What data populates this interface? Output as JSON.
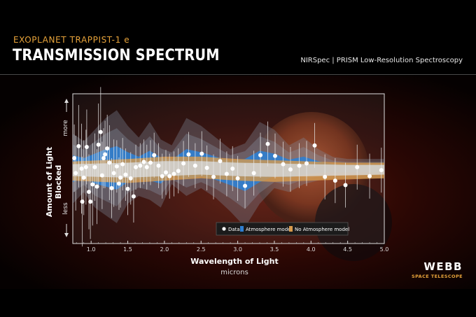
{
  "header": {
    "subtitle": "EXOPLANET TRAPPIST-1 e",
    "title": "TRANSMISSION SPECTRUM",
    "instrument": "NIRSpec | PRISM Low-Resolution Spectroscopy"
  },
  "branding": {
    "logo": "WEBB",
    "logo_sub": "SPACE TELESCOPE"
  },
  "colors": {
    "accent": "#e7a33a",
    "atmosphere": "#2f7fd1",
    "no_atmosphere": "#d79a4c",
    "data": "#ffffff"
  },
  "chart_data": {
    "type": "scatter",
    "xlabel": "Wavelength of Light",
    "xunit": "microns",
    "ylabel": "Amount of Light Blocked",
    "ylabel_more": "more",
    "ylabel_less": "less",
    "xlim": [
      0.75,
      5.0
    ],
    "ylim": [
      -1.0,
      1.0
    ],
    "xticks": [
      1.0,
      1.5,
      2.0,
      2.5,
      3.0,
      3.5,
      4.0,
      4.5,
      5.0
    ],
    "xtick_labels": [
      "1.0",
      "1.5",
      "2.0",
      "2.5",
      "3.0",
      "3.5",
      "4.0",
      "4.5",
      "5.0"
    ],
    "legend": {
      "position": "bottom-right",
      "entries": [
        "Data",
        "Atmosphere model",
        "No Atmosphere model"
      ]
    },
    "series": [
      {
        "name": "Data",
        "points": [
          {
            "x": 0.77,
            "y": 0.14,
            "err": 0.45
          },
          {
            "x": 0.79,
            "y": -0.06,
            "err": 0.5
          },
          {
            "x": 0.83,
            "y": 0.3,
            "err": 0.55
          },
          {
            "x": 0.87,
            "y": 0.0,
            "err": 0.6
          },
          {
            "x": 0.88,
            "y": -0.44,
            "err": 0.6
          },
          {
            "x": 0.9,
            "y": -0.12,
            "err": 0.5
          },
          {
            "x": 0.93,
            "y": 0.02,
            "err": 0.5
          },
          {
            "x": 0.94,
            "y": 0.29,
            "err": 0.5
          },
          {
            "x": 0.97,
            "y": -0.31,
            "err": 0.5
          },
          {
            "x": 0.99,
            "y": -0.44,
            "err": 0.5
          },
          {
            "x": 1.02,
            "y": -0.21,
            "err": 0.55
          },
          {
            "x": 1.05,
            "y": 0.02,
            "err": 0.45
          },
          {
            "x": 1.08,
            "y": -0.24,
            "err": 0.5
          },
          {
            "x": 1.1,
            "y": 0.32,
            "err": 0.55
          },
          {
            "x": 1.13,
            "y": 0.49,
            "err": 0.6
          },
          {
            "x": 1.15,
            "y": -0.09,
            "err": 0.45
          },
          {
            "x": 1.17,
            "y": 0.14,
            "err": 0.4
          },
          {
            "x": 1.19,
            "y": 0.19,
            "err": 0.45
          },
          {
            "x": 1.22,
            "y": 0.27,
            "err": 0.45
          },
          {
            "x": 1.25,
            "y": 0.08,
            "err": 0.5
          },
          {
            "x": 1.28,
            "y": -0.26,
            "err": 0.4
          },
          {
            "x": 1.31,
            "y": -0.06,
            "err": 0.45
          },
          {
            "x": 1.35,
            "y": 0.03,
            "err": 0.35
          },
          {
            "x": 1.38,
            "y": -0.2,
            "err": 0.35
          },
          {
            "x": 1.4,
            "y": -0.12,
            "err": 0.4
          },
          {
            "x": 1.43,
            "y": 0.06,
            "err": 0.35
          },
          {
            "x": 1.47,
            "y": -0.08,
            "err": 0.35
          },
          {
            "x": 1.5,
            "y": -0.27,
            "err": 0.35
          },
          {
            "x": 1.54,
            "y": -0.13,
            "err": 0.35
          },
          {
            "x": 1.58,
            "y": -0.37,
            "err": 0.35
          },
          {
            "x": 1.61,
            "y": 0.02,
            "err": 0.3
          },
          {
            "x": 1.67,
            "y": 0.04,
            "err": 0.3
          },
          {
            "x": 1.72,
            "y": 0.09,
            "err": 0.3
          },
          {
            "x": 1.76,
            "y": 0.02,
            "err": 0.3
          },
          {
            "x": 1.81,
            "y": 0.08,
            "err": 0.3
          },
          {
            "x": 1.86,
            "y": 0.18,
            "err": 0.3
          },
          {
            "x": 1.92,
            "y": 0.04,
            "err": 0.3
          },
          {
            "x": 1.97,
            "y": -0.1,
            "err": 0.3
          },
          {
            "x": 2.02,
            "y": -0.05,
            "err": 0.3
          },
          {
            "x": 2.07,
            "y": -0.1,
            "err": 0.3
          },
          {
            "x": 2.13,
            "y": -0.07,
            "err": 0.3
          },
          {
            "x": 2.19,
            "y": -0.03,
            "err": 0.3
          },
          {
            "x": 2.26,
            "y": 0.07,
            "err": 0.3
          },
          {
            "x": 2.33,
            "y": 0.19,
            "err": 0.3
          },
          {
            "x": 2.42,
            "y": 0.04,
            "err": 0.3
          },
          {
            "x": 2.51,
            "y": 0.2,
            "err": 0.3
          },
          {
            "x": 2.58,
            "y": 0.01,
            "err": 0.3
          },
          {
            "x": 2.67,
            "y": -0.11,
            "err": 0.3
          },
          {
            "x": 2.76,
            "y": 0.1,
            "err": 0.3
          },
          {
            "x": 2.85,
            "y": -0.07,
            "err": 0.3
          },
          {
            "x": 2.93,
            "y": 0.0,
            "err": 0.3
          },
          {
            "x": 3.0,
            "y": -0.13,
            "err": 0.3
          },
          {
            "x": 3.1,
            "y": -0.23,
            "err": 0.3
          },
          {
            "x": 3.22,
            "y": -0.06,
            "err": 0.3
          },
          {
            "x": 3.31,
            "y": 0.18,
            "err": 0.3
          },
          {
            "x": 3.41,
            "y": 0.33,
            "err": 0.3
          },
          {
            "x": 3.51,
            "y": 0.17,
            "err": 0.3
          },
          {
            "x": 3.62,
            "y": 0.06,
            "err": 0.3
          },
          {
            "x": 3.72,
            "y": -0.01,
            "err": 0.3
          },
          {
            "x": 3.84,
            "y": 0.04,
            "err": 0.3
          },
          {
            "x": 3.94,
            "y": 0.07,
            "err": 0.3
          },
          {
            "x": 4.05,
            "y": 0.31,
            "err": 0.3
          },
          {
            "x": 4.19,
            "y": -0.11,
            "err": 0.3
          },
          {
            "x": 4.33,
            "y": -0.16,
            "err": 0.3
          },
          {
            "x": 4.47,
            "y": -0.22,
            "err": 0.3
          },
          {
            "x": 4.63,
            "y": 0.02,
            "err": 0.3
          },
          {
            "x": 4.8,
            "y": -0.1,
            "err": 0.3
          },
          {
            "x": 4.96,
            "y": -0.02,
            "err": 0.3
          }
        ]
      },
      {
        "name": "Atmosphere model",
        "x": [
          0.75,
          0.9,
          1.05,
          1.2,
          1.35,
          1.5,
          1.65,
          1.8,
          1.95,
          2.1,
          2.3,
          2.5,
          2.7,
          2.9,
          3.1,
          3.3,
          3.5,
          3.7,
          3.9,
          4.1,
          4.3,
          4.5,
          4.7,
          5.0
        ],
        "upper": [
          0.18,
          0.14,
          0.2,
          0.26,
          0.3,
          0.22,
          0.16,
          0.24,
          0.15,
          0.12,
          0.26,
          0.22,
          0.16,
          0.1,
          0.13,
          0.24,
          0.2,
          0.12,
          0.16,
          0.1,
          0.06,
          0.05,
          0.05,
          0.05
        ],
        "lower": [
          -0.18,
          -0.12,
          -0.2,
          -0.24,
          -0.28,
          -0.18,
          -0.14,
          -0.16,
          -0.2,
          -0.08,
          -0.14,
          -0.1,
          -0.15,
          -0.22,
          -0.3,
          -0.18,
          -0.1,
          -0.12,
          -0.08,
          -0.06,
          -0.05,
          -0.05,
          -0.05,
          -0.05
        ]
      },
      {
        "name": "No Atmosphere model",
        "x": [
          0.75,
          1.5,
          2.0,
          2.5,
          3.0,
          3.5,
          4.0,
          4.5,
          5.0
        ],
        "upper": [
          0.06,
          0.08,
          0.1,
          0.1,
          0.08,
          0.07,
          0.06,
          0.05,
          0.05
        ],
        "lower": [
          -0.1,
          -0.12,
          -0.1,
          -0.08,
          -0.1,
          -0.11,
          -0.1,
          -0.09,
          -0.08
        ]
      }
    ]
  }
}
